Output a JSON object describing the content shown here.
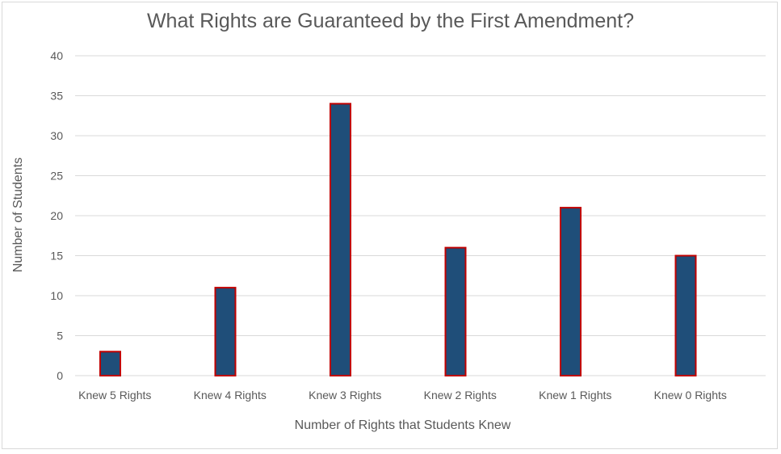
{
  "chart_data": {
    "type": "bar",
    "title": "What Rights are Guaranteed by the First Amendment?",
    "xlabel": "Number of Rights that Students Knew",
    "ylabel": "Number of Students",
    "categories": [
      "Knew 5 Rights",
      "Knew 4 Rights",
      "Knew 3 Rights",
      "Knew 2 Rights",
      "Knew 1 Rights",
      "Knew 0 Rights"
    ],
    "values": [
      3,
      11,
      34,
      16,
      21,
      15
    ],
    "ylim": [
      0,
      40
    ],
    "yticks": [
      0,
      5,
      10,
      15,
      20,
      25,
      30,
      35,
      40
    ],
    "grid": true,
    "legend": "none",
    "colors": {
      "bar_fill": "#1f4e79",
      "bar_border": "#c00000",
      "grid": "#d9d9d9",
      "text": "#595959"
    }
  }
}
